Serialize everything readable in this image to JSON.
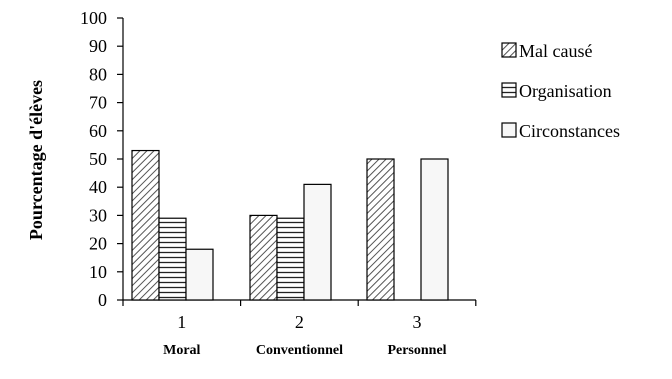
{
  "chart_data": {
    "type": "bar",
    "ylabel": "Pourcentage d'élèves",
    "ylim": [
      0,
      100
    ],
    "yticks": [
      0,
      10,
      20,
      30,
      40,
      50,
      60,
      70,
      80,
      90,
      100
    ],
    "categories": [
      "1",
      "2",
      "3"
    ],
    "category_names": [
      "Moral",
      "Conventionnel",
      "Personnel"
    ],
    "series": [
      {
        "name": "Mal causé",
        "pattern": "diagonal-hatch",
        "values": [
          53,
          30,
          50
        ]
      },
      {
        "name": "Organisation",
        "pattern": "horizontal-lines",
        "values": [
          29,
          29,
          0
        ]
      },
      {
        "name": "Circonstances",
        "pattern": "plain",
        "values": [
          18,
          41,
          50
        ]
      }
    ],
    "legend_position": "right",
    "grid": false
  }
}
